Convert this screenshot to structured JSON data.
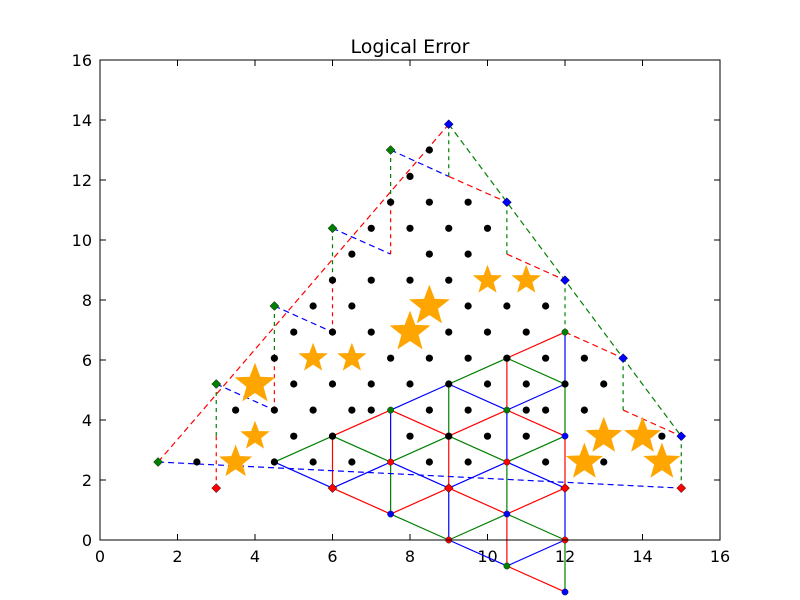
{
  "chart_data": {
    "type": "scatter",
    "title": "Logical Error",
    "xlabel": "",
    "ylabel": "",
    "xlim": [
      0,
      16
    ],
    "ylim": [
      0,
      16
    ],
    "xticks": [
      "0",
      "2",
      "4",
      "6",
      "8",
      "10",
      "12",
      "14",
      "16"
    ],
    "yticks": [
      "0",
      "2",
      "4",
      "6",
      "8",
      "10",
      "12",
      "14",
      "16"
    ],
    "grid": false,
    "legend": "none",
    "colors": {
      "red": "#ff0000",
      "green": "#008000",
      "blue": "#0000ff",
      "star": "#ffa500",
      "dot": "#000000"
    },
    "lattice": {
      "origin": [
        1.5,
        2.598
      ],
      "a": [
        1.5,
        0.866
      ],
      "b": [
        1.5,
        -0.866
      ],
      "rows": 7
    },
    "series": [
      {
        "marker": "circle",
        "color": "#000000",
        "points": [
          [
            2.5,
            2.6
          ],
          [
            4.5,
            2.6
          ],
          [
            5.5,
            2.6
          ],
          [
            6.5,
            2.6
          ],
          [
            8.5,
            2.6
          ],
          [
            9.5,
            2.6
          ],
          [
            11.5,
            2.6
          ],
          [
            13,
            2.6
          ],
          [
            5,
            3.46
          ],
          [
            6,
            3.46
          ],
          [
            8,
            3.46
          ],
          [
            9,
            3.46
          ],
          [
            10,
            3.46
          ],
          [
            11,
            3.46
          ],
          [
            14.5,
            3.46
          ],
          [
            3.5,
            4.33
          ],
          [
            4.5,
            4.33
          ],
          [
            5.5,
            4.33
          ],
          [
            6.5,
            4.33
          ],
          [
            7,
            4.33
          ],
          [
            8.5,
            4.33
          ],
          [
            9.5,
            4.33
          ],
          [
            11,
            4.33
          ],
          [
            11.5,
            4.33
          ],
          [
            12.5,
            4.33
          ],
          [
            5,
            5.2
          ],
          [
            6,
            5.2
          ],
          [
            7,
            5.2
          ],
          [
            8,
            5.2
          ],
          [
            9,
            5.2
          ],
          [
            10,
            5.2
          ],
          [
            11,
            5.2
          ],
          [
            12,
            5.2
          ],
          [
            13,
            5.2
          ],
          [
            4.5,
            6.06
          ],
          [
            7.5,
            6.06
          ],
          [
            8.5,
            6.06
          ],
          [
            9.5,
            6.06
          ],
          [
            10.5,
            6.06
          ],
          [
            11.5,
            6.06
          ],
          [
            12.5,
            6.06
          ],
          [
            5,
            6.93
          ],
          [
            6,
            6.93
          ],
          [
            7,
            6.93
          ],
          [
            9,
            6.93
          ],
          [
            10,
            6.93
          ],
          [
            11,
            6.93
          ],
          [
            5.5,
            7.8
          ],
          [
            6.5,
            7.8
          ],
          [
            9.5,
            7.8
          ],
          [
            10.5,
            7.8
          ],
          [
            11.5,
            7.8
          ],
          [
            6,
            8.66
          ],
          [
            7,
            8.66
          ],
          [
            8,
            8.66
          ],
          [
            9,
            8.66
          ],
          [
            6.5,
            9.53
          ],
          [
            8.5,
            9.53
          ],
          [
            9.5,
            9.53
          ],
          [
            7,
            10.39
          ],
          [
            8,
            10.39
          ],
          [
            9,
            10.39
          ],
          [
            10,
            10.39
          ],
          [
            7.5,
            11.26
          ],
          [
            8.5,
            11.26
          ],
          [
            9.5,
            11.26
          ],
          [
            8,
            12.12
          ],
          [
            8.5,
            13
          ]
        ]
      },
      {
        "marker": "star",
        "color": "#ffa500",
        "points": [
          [
            3.5,
            2.6,
            16
          ],
          [
            12.5,
            2.6,
            18
          ],
          [
            14.5,
            2.6,
            18
          ],
          [
            4,
            3.46,
            14
          ],
          [
            13,
            3.46,
            18
          ],
          [
            14,
            3.46,
            18
          ],
          [
            4,
            5.2,
            20
          ],
          [
            5.5,
            6.06,
            14
          ],
          [
            6.5,
            6.06,
            14
          ],
          [
            8,
            6.93,
            20
          ],
          [
            8.5,
            7.8,
            20
          ],
          [
            10,
            8.66,
            14
          ],
          [
            11,
            8.66,
            14
          ]
        ]
      },
      {
        "marker": "diamond",
        "color": "#ff0000",
        "points": [
          [
            3,
            1.73
          ],
          [
            6,
            1.73
          ],
          [
            9,
            1.73
          ],
          [
            12,
            1.73
          ],
          [
            15,
            1.73
          ]
        ]
      },
      {
        "marker": "diamond",
        "color": "#008000",
        "points": [
          [
            1.5,
            2.6
          ],
          [
            3,
            5.2
          ],
          [
            4.5,
            7.8
          ],
          [
            6,
            10.39
          ],
          [
            7.5,
            13
          ]
        ]
      },
      {
        "marker": "diamond",
        "color": "#0000ff",
        "points": [
          [
            9,
            13.86
          ],
          [
            10.5,
            11.26
          ],
          [
            12,
            8.66
          ],
          [
            13.5,
            6.06
          ],
          [
            15,
            3.46
          ]
        ]
      }
    ],
    "boundary_edges": [
      {
        "color": "#ff0000",
        "style": "dashed",
        "points": [
          [
            1.5,
            2.6
          ],
          [
            9,
            13.86
          ]
        ]
      },
      {
        "color": "#0000ff",
        "style": "dashed",
        "points": [
          [
            3,
            5.2
          ],
          [
            4.5,
            4.33
          ]
        ]
      },
      {
        "color": "#0000ff",
        "style": "dashed",
        "points": [
          [
            4.5,
            7.8
          ],
          [
            6,
            6.93
          ]
        ]
      },
      {
        "color": "#0000ff",
        "style": "dashed",
        "points": [
          [
            6,
            10.39
          ],
          [
            7.5,
            9.53
          ]
        ]
      },
      {
        "color": "#0000ff",
        "style": "dashed",
        "points": [
          [
            7.5,
            13
          ],
          [
            9,
            12.12
          ]
        ]
      },
      {
        "color": "#008000",
        "style": "dotted",
        "points": [
          [
            3,
            5.2
          ],
          [
            3,
            3.46
          ]
        ]
      },
      {
        "color": "#008000",
        "style": "dotted",
        "points": [
          [
            4.5,
            7.8
          ],
          [
            4.5,
            6.06
          ]
        ]
      },
      {
        "color": "#008000",
        "style": "dotted",
        "points": [
          [
            6,
            10.39
          ],
          [
            6,
            8.66
          ]
        ]
      },
      {
        "color": "#008000",
        "style": "dotted",
        "points": [
          [
            7.5,
            13
          ],
          [
            7.5,
            11.26
          ]
        ]
      },
      {
        "color": "#ff0000",
        "style": "dotted",
        "points": [
          [
            3,
            3.46
          ],
          [
            3,
            1.73
          ]
        ]
      },
      {
        "color": "#ff0000",
        "style": "dotted",
        "points": [
          [
            4.5,
            6.06
          ],
          [
            4.5,
            4.33
          ]
        ]
      },
      {
        "color": "#ff0000",
        "style": "dotted",
        "points": [
          [
            6,
            8.66
          ],
          [
            6,
            6.93
          ]
        ]
      },
      {
        "color": "#ff0000",
        "style": "dotted",
        "points": [
          [
            7.5,
            11.26
          ],
          [
            7.5,
            9.53
          ]
        ]
      },
      {
        "color": "#0000ff",
        "style": "dashed",
        "points": [
          [
            1.5,
            2.6
          ],
          [
            15,
            1.73
          ]
        ]
      },
      {
        "color": "#008000",
        "style": "dashed",
        "points": [
          [
            9,
            13.86
          ],
          [
            15,
            3.46
          ]
        ]
      },
      {
        "color": "#ff0000",
        "style": "dashed",
        "points": [
          [
            9,
            12.12
          ],
          [
            10.5,
            11.26
          ]
        ]
      },
      {
        "color": "#ff0000",
        "style": "dashed",
        "points": [
          [
            10.5,
            9.53
          ],
          [
            12,
            8.66
          ]
        ]
      },
      {
        "color": "#ff0000",
        "style": "dashed",
        "points": [
          [
            12,
            6.93
          ],
          [
            13.5,
            6.06
          ]
        ]
      },
      {
        "color": "#ff0000",
        "style": "dashed",
        "points": [
          [
            13.5,
            4.33
          ],
          [
            15,
            3.46
          ]
        ]
      },
      {
        "color": "#008000",
        "style": "dotted",
        "points": [
          [
            9,
            13.86
          ],
          [
            9,
            12.12
          ]
        ]
      },
      {
        "color": "#008000",
        "style": "dotted",
        "points": [
          [
            10.5,
            11.26
          ],
          [
            10.5,
            9.53
          ]
        ]
      },
      {
        "color": "#008000",
        "style": "dotted",
        "points": [
          [
            12,
            8.66
          ],
          [
            12,
            6.93
          ]
        ]
      },
      {
        "color": "#008000",
        "style": "dotted",
        "points": [
          [
            13.5,
            6.06
          ],
          [
            13.5,
            4.33
          ]
        ]
      },
      {
        "color": "#008000",
        "style": "dotted",
        "points": [
          [
            15,
            3.46
          ],
          [
            15,
            1.73
          ]
        ]
      }
    ]
  }
}
